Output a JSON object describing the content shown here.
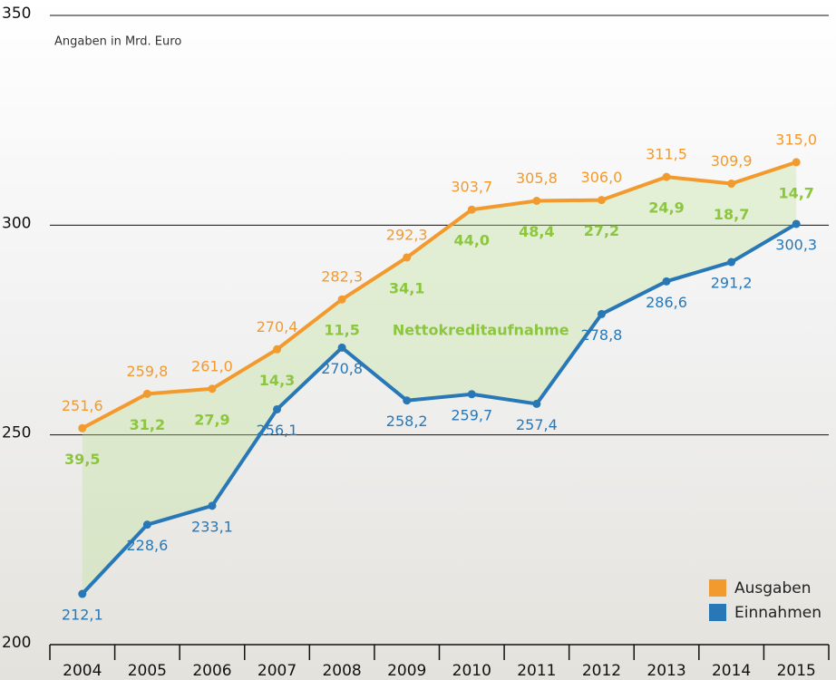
{
  "chart_data": {
    "type": "line",
    "subtitle": "Angaben in Mrd. Euro",
    "categories": [
      "2004",
      "2005",
      "2006",
      "2007",
      "2008",
      "2009",
      "2010",
      "2011",
      "2012",
      "2013",
      "2014",
      "2015"
    ],
    "series": [
      {
        "name": "Ausgaben",
        "color": "#f29a2e",
        "values": [
          251.6,
          259.8,
          261.0,
          270.4,
          282.3,
          292.3,
          303.7,
          305.8,
          306.0,
          311.5,
          309.9,
          315.0
        ],
        "value_labels": [
          "251,6",
          "259,8",
          "261,0",
          "270,4",
          "282,3",
          "292,3",
          "303,7",
          "305,8",
          "306,0",
          "311,5",
          "309,9",
          "315,0"
        ]
      },
      {
        "name": "Einnahmen",
        "color": "#2878b8",
        "values": [
          212.1,
          228.6,
          233.1,
          256.1,
          270.8,
          258.2,
          259.7,
          257.4,
          278.8,
          286.6,
          291.2,
          300.3
        ],
        "value_labels": [
          "212,1",
          "228,6",
          "233,1",
          "256,1",
          "270,8",
          "258,2",
          "259,7",
          "257,4",
          "278,8",
          "286,6",
          "291,2",
          "300,3"
        ]
      }
    ],
    "net_borrowing": {
      "name": "Nettokreditaufnahme",
      "color": "#8cc63f",
      "values": [
        39.5,
        31.2,
        27.9,
        14.3,
        11.5,
        34.1,
        44.0,
        48.4,
        27.2,
        24.9,
        18.7,
        14.7
      ],
      "value_labels": [
        "39,5",
        "31,2",
        "27,9",
        "14,3",
        "11,5",
        "34,1",
        "44,0",
        "48,4",
        "27,2",
        "24,9",
        "18,7",
        "14,7"
      ]
    },
    "ylim": [
      200,
      350
    ],
    "yticks": [
      200,
      250,
      300,
      350
    ],
    "grid": true,
    "legend": "lower right"
  }
}
